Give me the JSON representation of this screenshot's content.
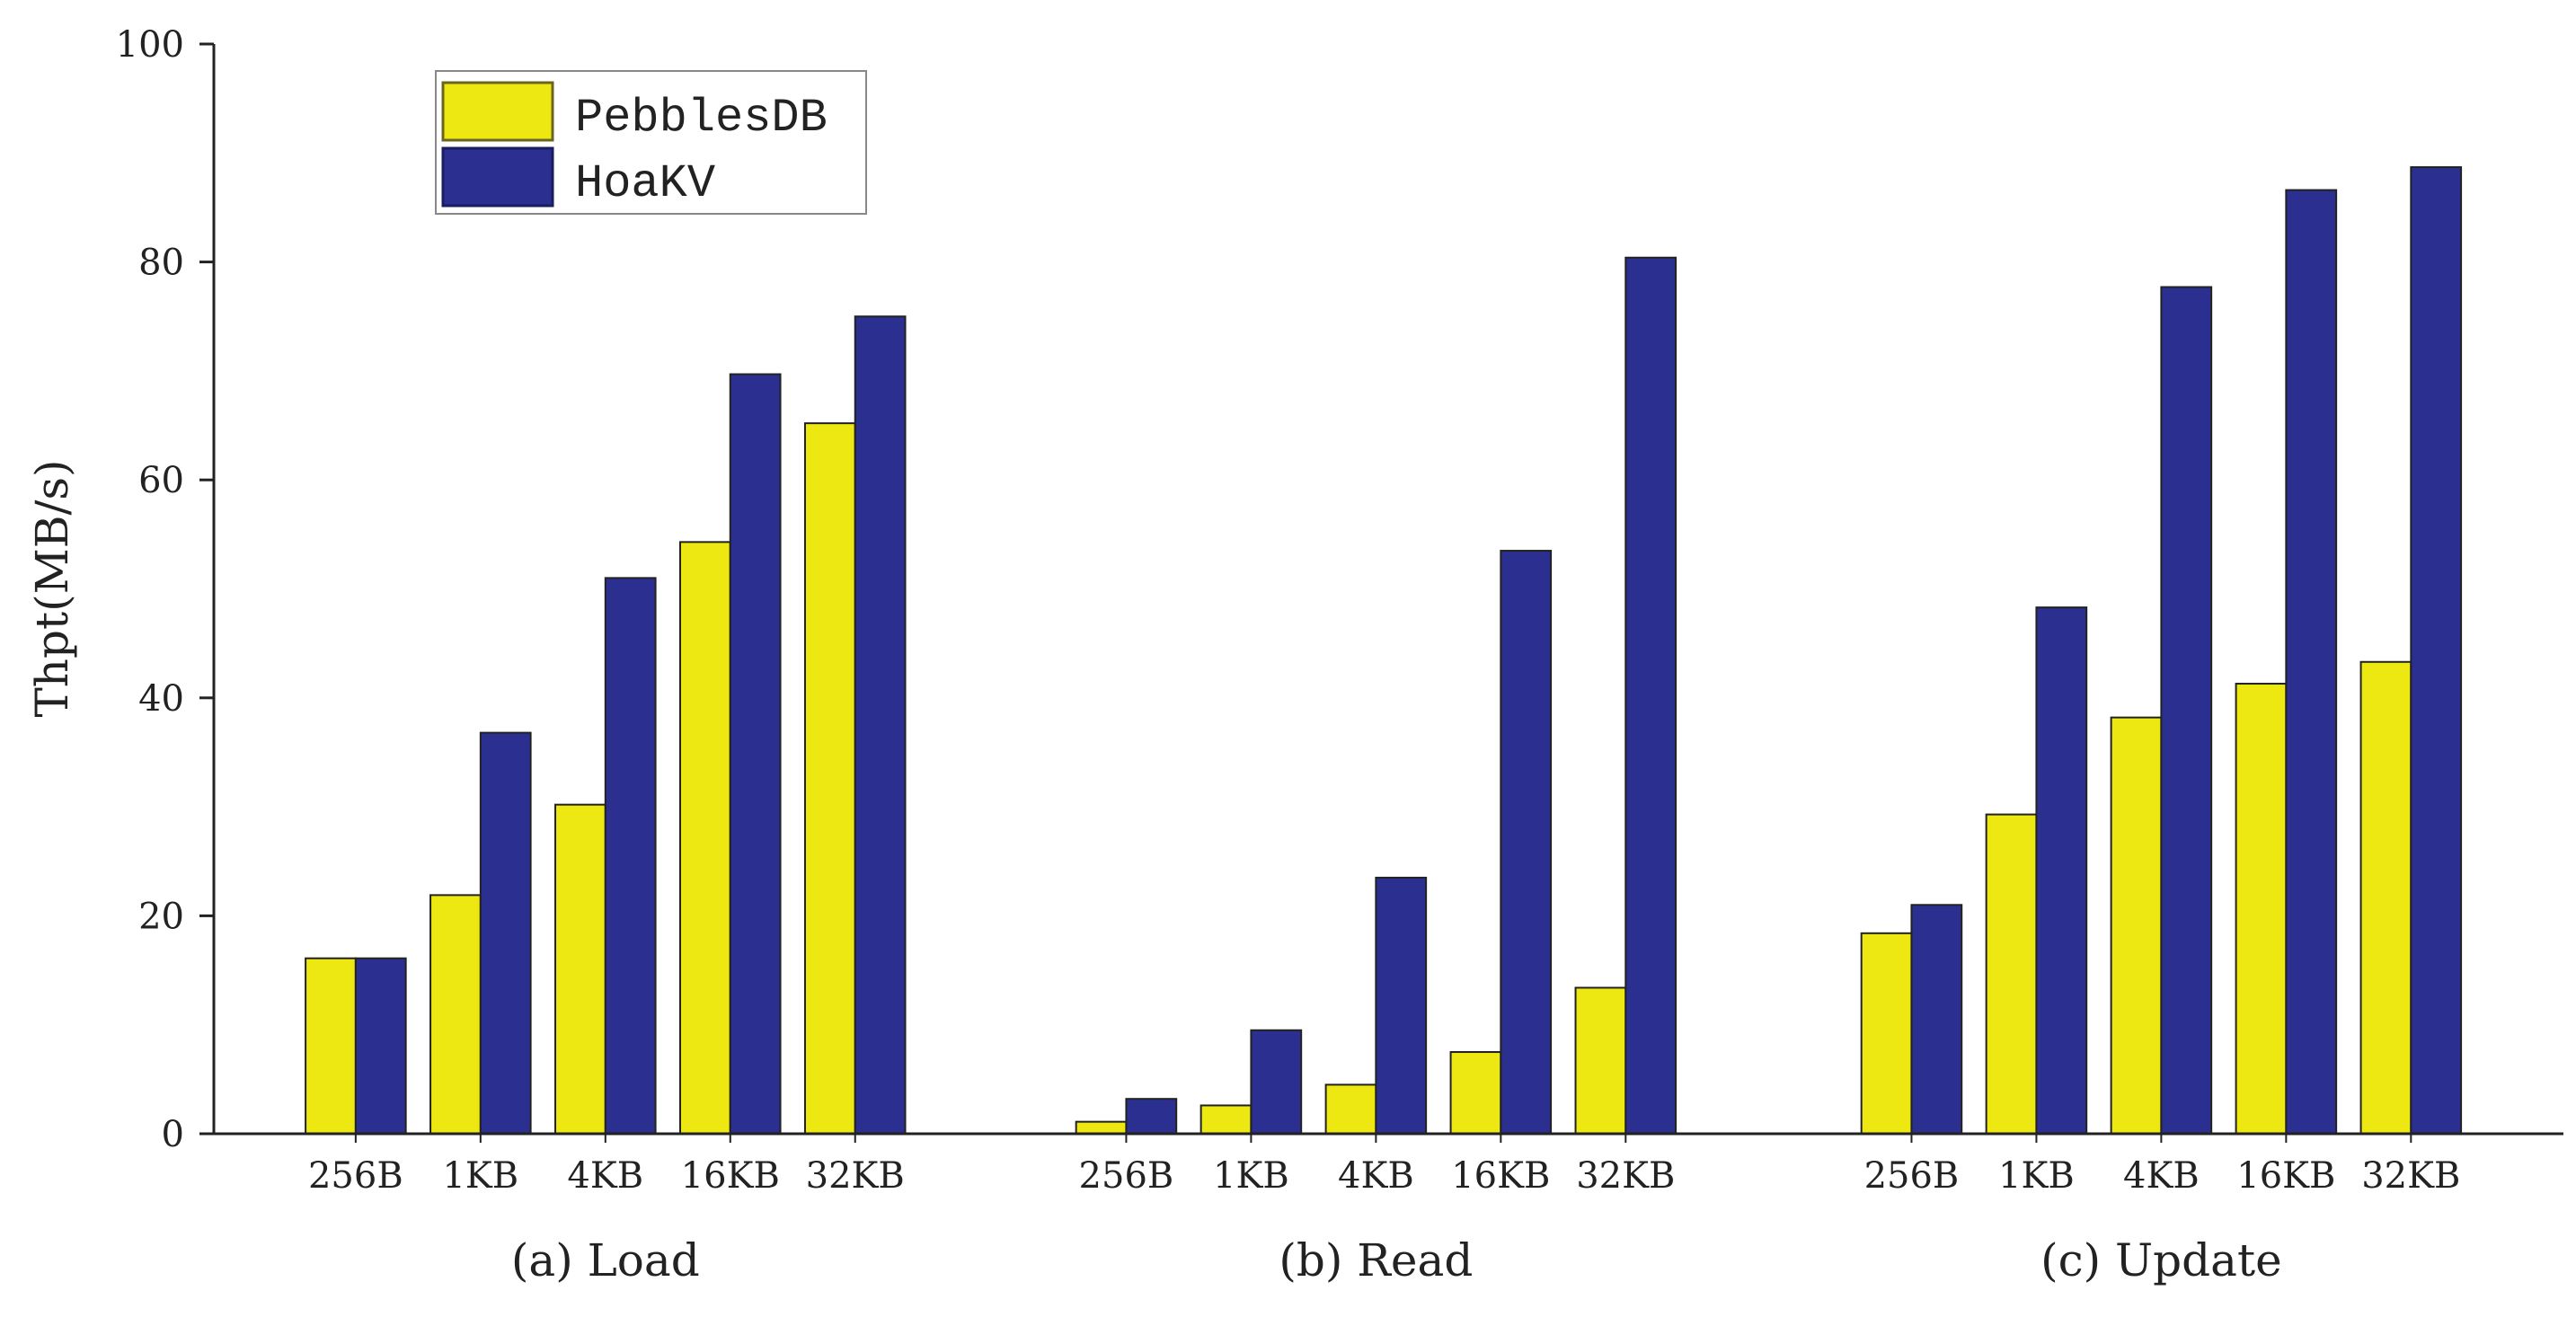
{
  "chart_data": {
    "type": "bar",
    "ylabel": "Thpt(MB/s)",
    "ylim": [
      0,
      100
    ],
    "yticks": [
      0,
      20,
      40,
      60,
      80,
      100
    ],
    "grid": false,
    "legend_position": "top-left",
    "categories": [
      "256B",
      "1KB",
      "4KB",
      "16KB",
      "32KB"
    ],
    "series_meta": [
      {
        "name": "PebblesDB",
        "color": "#eee812"
      },
      {
        "name": "HoaKV",
        "color": "#2b2f8f"
      }
    ],
    "groups": [
      {
        "label": "(a) Load",
        "series": [
          {
            "name": "PebblesDB",
            "values": [
              16.1,
              21.9,
              30.2,
              54.3,
              65.2
            ]
          },
          {
            "name": "HoaKV",
            "values": [
              16.1,
              36.8,
              51.0,
              69.7,
              75.0
            ]
          }
        ]
      },
      {
        "label": "(b) Read",
        "series": [
          {
            "name": "PebblesDB",
            "values": [
              1.1,
              2.6,
              4.5,
              7.5,
              13.4
            ]
          },
          {
            "name": "HoaKV",
            "values": [
              3.2,
              9.5,
              23.5,
              53.5,
              80.4
            ]
          }
        ]
      },
      {
        "label": "(c) Update",
        "series": [
          {
            "name": "PebblesDB",
            "values": [
              18.4,
              29.3,
              38.2,
              41.3,
              43.3
            ]
          },
          {
            "name": "HoaKV",
            "values": [
              21.0,
              48.3,
              77.7,
              86.6,
              88.7
            ]
          }
        ]
      }
    ]
  }
}
